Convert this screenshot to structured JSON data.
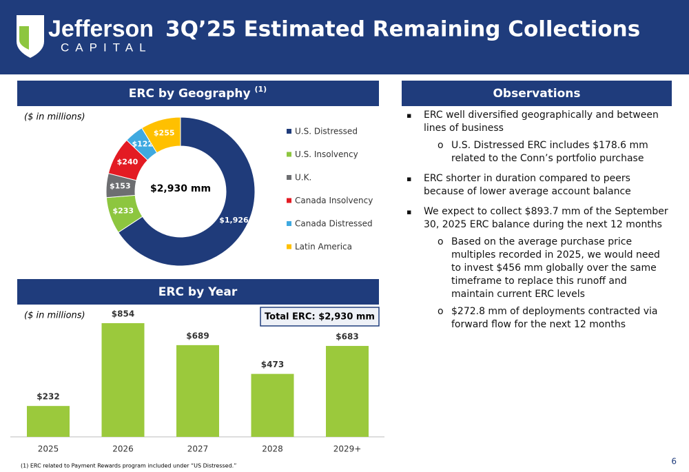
{
  "header": {
    "logo_name": "Jefferson",
    "logo_sub": "CAPITAL",
    "title": "3Q’25 Estimated Remaining Collections"
  },
  "chart_data": [
    {
      "type": "donut",
      "title": "ERC by Geography",
      "title_note": "(1)",
      "subtitle": "($ in millions)",
      "center_label": "$2,930 mm",
      "categories": [
        "U.S. Distressed",
        "U.S. Insolvency",
        "U.K.",
        "Canada Insolvency",
        "Canada Distressed",
        "Latin America"
      ],
      "values": [
        1926,
        233,
        153,
        240,
        122,
        255
      ],
      "value_labels": [
        "$1,926",
        "$233",
        "$153",
        "$240",
        "$122",
        "$255"
      ],
      "colors": [
        "#1f3b7a",
        "#8dc63f",
        "#6d6e71",
        "#e31b23",
        "#3fa9e0",
        "#ffc000"
      ],
      "legend": "right"
    },
    {
      "type": "bar",
      "title": "ERC by Year",
      "subtitle": "($ in millions)",
      "annotation": "Total ERC: $2,930 mm",
      "categories": [
        "2025",
        "2026",
        "2027",
        "2028",
        "2029+"
      ],
      "values": [
        232,
        854,
        689,
        473,
        683
      ],
      "value_labels": [
        "$232",
        "$854",
        "$689",
        "$473",
        "$683"
      ],
      "color": "#9bc93c"
    }
  ],
  "observations": {
    "title": "Observations",
    "items": [
      {
        "text": "ERC well diversified geographically and between lines of business",
        "sub": [
          "U.S. Distressed ERC includes $178.6 mm related to the Conn’s portfolio purchase"
        ]
      },
      {
        "text": "ERC shorter in duration compared to peers because of lower average account balance",
        "sub": []
      },
      {
        "text": "We expect to collect $893.7 mm of the September 30, 2025 ERC balance during the next 12 months",
        "sub": [
          "Based on the average purchase price multiples recorded in 2025, we would need to invest $456 mm globally over the same timeframe to replace this runoff and maintain current ERC levels",
          "$272.8 mm of deployments contracted via forward flow for the next 12 months"
        ]
      }
    ]
  },
  "footnote": "(1) ERC related to Payment Rewards program included under “US Distressed.”",
  "page_number": "6"
}
